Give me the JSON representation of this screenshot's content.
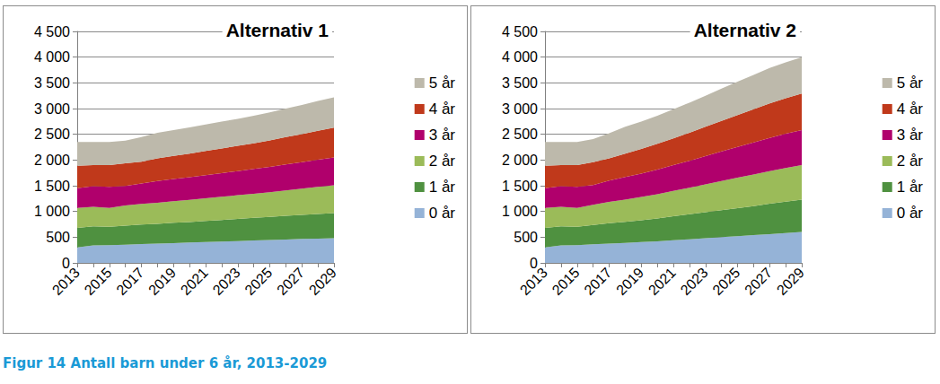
{
  "caption": "Figur 14 Antall barn under 6 år, 2013-2029",
  "chart_data": [
    {
      "type": "area",
      "title": "Alternativ 1",
      "stacked": true,
      "grid": true,
      "legend": "right",
      "categories": [
        "2013",
        null,
        "2015",
        null,
        "2017",
        null,
        "2019",
        null,
        "2021",
        null,
        "2023",
        null,
        "2025",
        null,
        "2027",
        null,
        "2029"
      ],
      "ylim": [
        0,
        4500
      ],
      "yticks": [
        0,
        500,
        {
          "value": 1000,
          "label": "1 000"
        },
        {
          "value": 1500,
          "label": "1 500"
        },
        {
          "value": 2000,
          "label": "2 000"
        },
        {
          "value": 2500,
          "label": "2 500"
        },
        {
          "value": 3000,
          "label": "3 000"
        },
        {
          "value": 3500,
          "label": "3 500"
        },
        {
          "value": 4000,
          "label": "4 000"
        },
        {
          "value": 4500,
          "label": "4 500"
        }
      ],
      "series": [
        {
          "name": "0 år",
          "color": "#95b3d7",
          "values": [
            300,
            340,
            345,
            355,
            365,
            375,
            385,
            395,
            405,
            415,
            425,
            435,
            445,
            455,
            465,
            472,
            480
          ]
        },
        {
          "name": "1 år",
          "color": "#4f9140",
          "values": [
            380,
            370,
            355,
            370,
            380,
            385,
            395,
            400,
            410,
            420,
            430,
            440,
            450,
            460,
            470,
            480,
            490
          ]
        },
        {
          "name": "2 år",
          "color": "#9bbb59",
          "values": [
            390,
            380,
            370,
            390,
            400,
            410,
            420,
            430,
            440,
            450,
            460,
            470,
            480,
            495,
            510,
            525,
            540
          ]
        },
        {
          "name": "3 år",
          "color": "#b0006c",
          "values": [
            380,
            400,
            410,
            380,
            400,
            420,
            430,
            440,
            450,
            460,
            470,
            480,
            490,
            505,
            515,
            530,
            540
          ]
        },
        {
          "name": "4 år",
          "color": "#c0391b",
          "values": [
            440,
            410,
            420,
            440,
            420,
            440,
            450,
            460,
            470,
            480,
            490,
            500,
            515,
            530,
            545,
            560,
            580
          ]
        },
        {
          "name": "5 år",
          "color": "#bdb9ab",
          "values": [
            460,
            450,
            450,
            440,
            480,
            500,
            500,
            510,
            515,
            520,
            525,
            535,
            545,
            555,
            565,
            580,
            590
          ]
        }
      ]
    },
    {
      "type": "area",
      "title": "Alternativ 2",
      "stacked": true,
      "grid": true,
      "legend": "right",
      "categories": [
        "2013",
        null,
        "2015",
        null,
        "2017",
        null,
        "2019",
        null,
        "2021",
        null,
        "2023",
        null,
        "2025",
        null,
        "2027",
        null,
        "2029"
      ],
      "ylim": [
        0,
        4500
      ],
      "yticks": [
        0,
        500,
        {
          "value": 1000,
          "label": "1 000"
        },
        {
          "value": 1500,
          "label": "1 500"
        },
        {
          "value": 2000,
          "label": "2 000"
        },
        {
          "value": 2500,
          "label": "2 500"
        },
        {
          "value": 3000,
          "label": "3 000"
        },
        {
          "value": 3500,
          "label": "3 500"
        },
        {
          "value": 4000,
          "label": "4 000"
        },
        {
          "value": 4500,
          "label": "4 500"
        }
      ],
      "series": [
        {
          "name": "0 år",
          "color": "#95b3d7",
          "values": [
            300,
            340,
            345,
            360,
            375,
            390,
            405,
            420,
            440,
            460,
            480,
            500,
            520,
            540,
            560,
            580,
            600
          ]
        },
        {
          "name": "1 år",
          "color": "#4f9140",
          "values": [
            380,
            370,
            355,
            375,
            395,
            410,
            425,
            445,
            465,
            485,
            505,
            525,
            545,
            565,
            590,
            610,
            630
          ]
        },
        {
          "name": "2 år",
          "color": "#9bbb59",
          "values": [
            390,
            380,
            370,
            395,
            415,
            430,
            450,
            470,
            495,
            515,
            540,
            565,
            590,
            615,
            635,
            655,
            670
          ]
        },
        {
          "name": "3 år",
          "color": "#b0006c",
          "values": [
            380,
            400,
            410,
            385,
            415,
            440,
            455,
            480,
            500,
            525,
            550,
            575,
            600,
            620,
            645,
            665,
            680
          ]
        },
        {
          "name": "4 år",
          "color": "#c0391b",
          "values": [
            440,
            410,
            420,
            445,
            430,
            455,
            480,
            500,
            520,
            545,
            570,
            595,
            620,
            645,
            670,
            690,
            710
          ]
        },
        {
          "name": "5 år",
          "color": "#bdb9ab",
          "values": [
            460,
            450,
            450,
            445,
            490,
            520,
            530,
            545,
            565,
            585,
            605,
            630,
            650,
            670,
            690,
            700,
            710
          ]
        }
      ]
    }
  ]
}
